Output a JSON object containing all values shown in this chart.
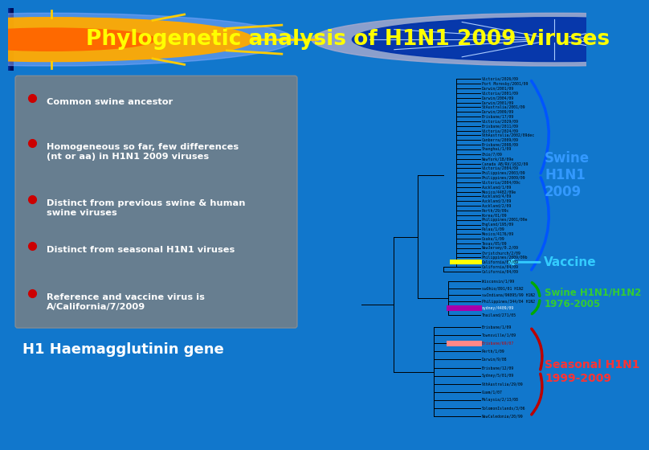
{
  "title": "Phylogenetic analysis of H1N1 2009 viruses",
  "title_color": "#FFFF00",
  "header_bg_left": "#0033AA",
  "header_bg_right": "#001166",
  "body_bg": "#1177CC",
  "legend_bg": "#777777",
  "legend_alpha": 0.75,
  "bullet_color": "#CC0000",
  "legend_text_color": "#FFFFFF",
  "legend_items": [
    "Common swine ancestor",
    "Homogeneous so far, few differences\n(nt or aa) in H1N1 2009 viruses",
    "Distinct from previous swine & human\nswine viruses",
    "Distinct from seasonal H1N1 viruses",
    "Reference and vaccine virus is\nA/California/7/2009"
  ],
  "tree_label": "H1 Haemagglutinin gene",
  "swine_label": "Swine\nH1N1\n2009",
  "swine_color": "#3399FF",
  "vaccine_label": "Vaccine",
  "vaccine_color": "#33CCFF",
  "swine_h1_label": "Swine H1N1/H1N2\n1976-2005",
  "swine_h1_color": "#33CC33",
  "seasonal_label": "Seasonal H1N1\n1999-2009",
  "seasonal_color": "#FF3333",
  "swine_2009_taxa": [
    "Victoria/2026/09",
    "Port Moresby/2001/09",
    "Darwin/2001/09",
    "Victoria/2001/09",
    "Darwin/2004/09",
    "Darwin/2001/09",
    "StAustralia/2001/09",
    "Darwin/2009/09",
    "Brisbane/17/09",
    "Victoria/2029/09",
    "Brisbane/2011/09",
    "Victoria/2024/09",
    "9thAustralia/2002/09dec",
    "Canberra/2009/09",
    "Brisbane/2008/09",
    "Shanghai/1/09",
    "Ohio/7/09",
    "NewYork/18/09e",
    "Canada AB/RV/1632/09",
    "Victoria/2004/09",
    "Philippines/2003/09",
    "Philippines/2009/09",
    "Victoria/2004/09c",
    "Auckland/1/09",
    "Mexico/4482/09e",
    "Auckland/4/09",
    "Auckland/3/09",
    "Auckland/2/09",
    "Perth/29/09c",
    "Korea/01/09",
    "Philippines/2001/09e",
    "England/195/09",
    "Palau/1/09",
    "Mexico/4176/09",
    "Osaka/1/09",
    "Texas/05/09",
    "NewJersey/0.2/09",
    "Christchurch/2/09",
    "Philippines/2009/09b",
    "California/07/09",
    "California/04/09"
  ],
  "swine_h1_taxa": [
    "Wisconsin/1/99",
    "swOhio/891/01 H1N2",
    "swIndiana/9K095/99 H1N2",
    "Philippines/344/04 H1N2",
    "sydney/4409/09",
    "Thailand/271/05"
  ],
  "seasonal_taxa": [
    "Brisbane/1/09",
    "Townsville/1/09",
    "Brisbane/69/07",
    "Perth/1/09",
    "Darwin/9/08",
    "Brisbane/12/09",
    "Sydney/5/01/09",
    "9thAustralia/29/09",
    "Guam/1/07",
    "Malaysia/2/13/08",
    "SolomonIslands/3/06",
    "NewCaledonia/20/99"
  ]
}
